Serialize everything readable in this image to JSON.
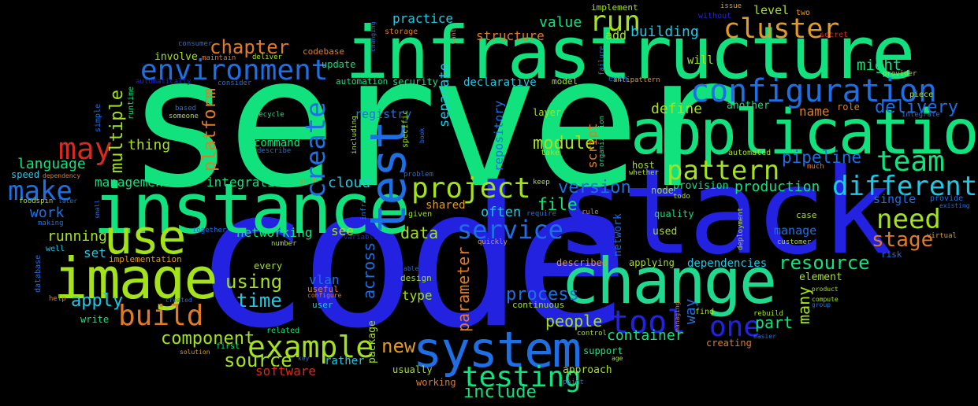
{
  "colors": {
    "background": "#000000",
    "green": "#12e27e",
    "lime": "#a4e21b",
    "blue": "#2222e0",
    "mid_blue": "#1f6fe4",
    "cyan": "#1fc8e6",
    "orange": "#e07b25",
    "red": "#d62a1f"
  },
  "words": {
    "server": "server",
    "code": "code",
    "stack": "stack",
    "infrastructure": "infrastructure",
    "instance": "instance",
    "application": "application",
    "change": "change",
    "image": "image",
    "system": "system",
    "test": "test",
    "use": "use",
    "configuration": "configuration",
    "environment": "environment",
    "cluster": "cluster",
    "project": "project",
    "example": "example",
    "testing": "testing",
    "pattern": "pattern",
    "different": "different",
    "team": "team",
    "service": "service",
    "create": "create",
    "tool": "tool",
    "make": "make",
    "may": "may",
    "build": "build",
    "run": "run",
    "one": "one",
    "need": "need",
    "pipeline": "pipeline",
    "platform": "platform",
    "chapter": "chapter",
    "delivery": "delivery",
    "resource": "resource",
    "stage": "stage",
    "source": "source",
    "module": "module",
    "multiple": "multiple",
    "version": "version",
    "time": "time",
    "using": "using",
    "across": "across",
    "parameter": "parameter",
    "component": "component",
    "process": "process",
    "people": "people",
    "new": "new",
    "include": "include",
    "many": "many",
    "apply": "apply",
    "part": "part",
    "data": "data",
    "file": "file",
    "define": "define",
    "production": "production",
    "might": "might",
    "work": "work",
    "language": "language",
    "value": "value",
    "script": "script",
    "building": "building",
    "cloud": "cloud",
    "repository": "repository",
    "networking": "networking",
    "integration": "integration",
    "management": "management",
    "running": "running",
    "thing": "thing",
    "container": "container",
    "dependencies": "dependencies",
    "software": "software",
    "separate": "separate",
    "often": "often",
    "way": "way",
    "vlan": "vlan",
    "type": "type",
    "structure": "structure",
    "practice": "practice",
    "name": "name",
    "level": "level",
    "add": "add",
    "registry": "registry",
    "declarative": "declarative",
    "single": "single",
    "manage": "manage",
    "network": "network",
    "package": "package",
    "shared": "shared",
    "set": "set",
    "rather": "rather",
    "approach": "approach",
    "see": "see",
    "command": "command",
    "involve": "involve",
    "codebase": "codebase",
    "security": "security",
    "automation": "automation",
    "update": "update",
    "layer": "layer",
    "will": "will",
    "another": "another",
    "host": "host",
    "provision": "provision",
    "node": "node",
    "quality": "quality",
    "used": "used",
    "case": "case",
    "applying": "applying",
    "described": "described",
    "element": "element",
    "usually": "usually",
    "working": "working",
    "continuous": "continuous",
    "support": "support",
    "creating": "creating",
    "find": "find",
    "every": "every",
    "design": "design",
    "user": "user",
    "useful": "useful",
    "implementation": "implementation",
    "write": "write",
    "speed": "speed",
    "role": "role",
    "risk": "risk",
    "implement": "implement",
    "model": "model",
    "first": "first",
    "related": "related",
    "automated": "automated",
    "even": "even",
    "piece": "piece",
    "take": "take",
    "storage": "storage",
    "issue": "issue",
    "without": "without",
    "two": "two",
    "secret": "secret",
    "consumer": "consumer",
    "maintain": "maintain",
    "deliver": "deliver",
    "consider": "consider",
    "automatically": "automatically",
    "antipattern": "antipattern",
    "provider": "provider",
    "integrate": "integrate",
    "lifecycle": "lifecycle",
    "describe": "describe",
    "based": "based",
    "someone": "someone",
    "specific": "specific",
    "including": "including",
    "book": "book",
    "whether": "whether",
    "much": "much",
    "problem": "problem",
    "keep": "keep",
    "todo": "todo",
    "foodspin": "foodspin",
    "later": "later",
    "dependency": "dependency",
    "yaml": "yaml",
    "making": "making",
    "well": "well",
    "together": "together",
    "number": "number",
    "variable": "variable",
    "given": "given",
    "require": "require",
    "quickly": "quickly",
    "rule": "rule",
    "provide": "provide",
    "existing": "existing",
    "customer": "customer",
    "virtual": "virtual",
    "database": "database",
    "help": "help",
    "created": "created",
    "configure": "configure",
    "able": "able",
    "product": "product",
    "compute": "compute",
    "group": "group",
    "rebuild": "rebuild",
    "easier": "easier",
    "control": "control",
    "key": "key",
    "solution": "solution",
    "age": "age",
    "point": "point",
    "managing": "managing",
    "deployment": "deployment",
    "organization": "organization",
    "failure": "failure",
    "runtime": "runtime",
    "simple": "simple",
    "small": "small",
    "infra": "infra",
    "changing": "changing",
    "want": "want"
  }
}
